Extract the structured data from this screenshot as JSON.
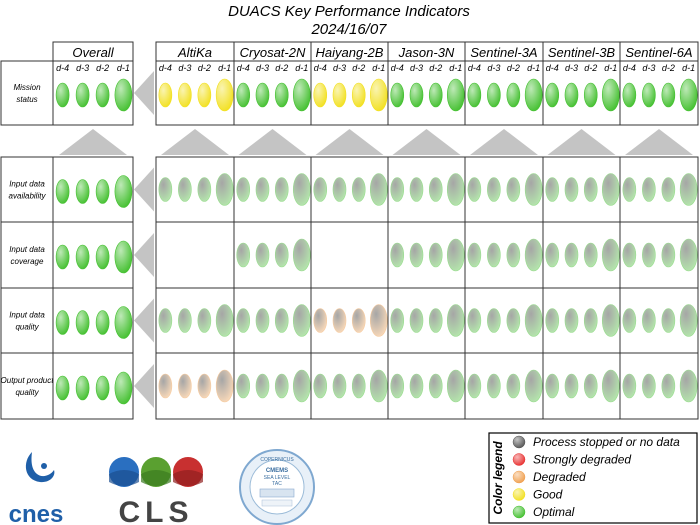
{
  "title": "DUACS Key Performance Indicators",
  "date": "2024/16/07",
  "day_labels": [
    "d-4",
    "d-3",
    "d-2",
    "d-1"
  ],
  "overall_header": "Overall",
  "missions": [
    "AltiKa",
    "Cryosat-2N",
    "Haiyang-2B",
    "Jason-3N",
    "Sentinel-3A",
    "Sentinel-3B",
    "Sentinel-6A"
  ],
  "rows": [
    {
      "label_lines": [
        "Mission",
        "status"
      ],
      "overall": [
        "optimal",
        "optimal",
        "optimal",
        "optimal"
      ],
      "missions": [
        [
          "good",
          "good",
          "good",
          "good"
        ],
        [
          "optimal",
          "optimal",
          "optimal",
          "optimal"
        ],
        [
          "good",
          "good",
          "good",
          "good"
        ],
        [
          "optimal",
          "optimal",
          "optimal",
          "optimal"
        ],
        [
          "optimal",
          "optimal",
          "optimal",
          "optimal"
        ],
        [
          "optimal",
          "optimal",
          "optimal",
          "optimal"
        ],
        [
          "optimal",
          "optimal",
          "optimal",
          "optimal"
        ]
      ]
    },
    {
      "label_lines": [
        "Input data",
        "availability"
      ],
      "overall": [
        "optimal",
        "optimal",
        "optimal",
        "optimal"
      ],
      "missions": [
        [
          "optimal",
          "optimal",
          "optimal",
          "optimal"
        ],
        [
          "optimal",
          "optimal",
          "optimal",
          "optimal"
        ],
        [
          "optimal",
          "optimal",
          "optimal",
          "optimal"
        ],
        [
          "optimal",
          "optimal",
          "optimal",
          "optimal"
        ],
        [
          "optimal",
          "optimal",
          "optimal",
          "optimal"
        ],
        [
          "optimal",
          "optimal",
          "optimal",
          "optimal"
        ],
        [
          "optimal",
          "optimal",
          "optimal",
          "optimal"
        ]
      ]
    },
    {
      "label_lines": [
        "Input data",
        "coverage"
      ],
      "overall": [
        "optimal",
        "optimal",
        "optimal",
        "optimal"
      ],
      "missions": [
        [],
        [
          "optimal",
          "optimal",
          "optimal",
          "optimal"
        ],
        [],
        [
          "optimal",
          "optimal",
          "optimal",
          "optimal"
        ],
        [
          "optimal",
          "optimal",
          "optimal",
          "optimal"
        ],
        [
          "optimal",
          "optimal",
          "optimal",
          "optimal"
        ],
        [
          "optimal",
          "optimal",
          "optimal",
          "optimal"
        ]
      ]
    },
    {
      "label_lines": [
        "Input data",
        "quality"
      ],
      "overall": [
        "optimal",
        "optimal",
        "optimal",
        "optimal"
      ],
      "missions": [
        [
          "optimal",
          "optimal",
          "optimal",
          "optimal"
        ],
        [
          "optimal",
          "optimal",
          "optimal",
          "optimal"
        ],
        [
          "degraded",
          "degraded",
          "degraded",
          "degraded"
        ],
        [
          "optimal",
          "optimal",
          "optimal",
          "optimal"
        ],
        [
          "optimal",
          "optimal",
          "optimal",
          "optimal"
        ],
        [
          "optimal",
          "optimal",
          "optimal",
          "optimal"
        ],
        [
          "optimal",
          "optimal",
          "optimal",
          "optimal"
        ]
      ]
    },
    {
      "label_lines": [
        "Output product",
        "quality"
      ],
      "overall": [
        "optimal",
        "optimal",
        "optimal",
        "optimal"
      ],
      "missions": [
        [
          "degraded",
          "degraded",
          "degraded",
          "degraded"
        ],
        [
          "optimal",
          "optimal",
          "optimal",
          "optimal"
        ],
        [
          "optimal",
          "optimal",
          "optimal",
          "optimal"
        ],
        [
          "optimal",
          "optimal",
          "optimal",
          "optimal"
        ],
        [
          "optimal",
          "optimal",
          "optimal",
          "optimal"
        ],
        [
          "optimal",
          "optimal",
          "optimal",
          "optimal"
        ],
        [
          "optimal",
          "optimal",
          "optimal",
          "optimal"
        ]
      ]
    }
  ],
  "status_colors": {
    "stopped": "#555555",
    "strongly_degraded": "#e83030",
    "degraded": "#f0a050",
    "good": "#f2e020",
    "optimal": "#44c030"
  },
  "legend": {
    "title": "Color legend",
    "items": [
      {
        "status": "stopped",
        "label": "Process stopped or no data"
      },
      {
        "status": "strongly_degraded",
        "label": "Strongly degraded"
      },
      {
        "status": "degraded",
        "label": "Degraded"
      },
      {
        "status": "good",
        "label": "Good"
      },
      {
        "status": "optimal",
        "label": "Optimal"
      }
    ]
  },
  "logos": {
    "cnes": "cnes",
    "cls": "CLS",
    "cmems_top": "COPERNICUS",
    "cmems_mid": "CMEMS",
    "cmems_lines": [
      "SEA LEVEL",
      "TAC"
    ]
  }
}
